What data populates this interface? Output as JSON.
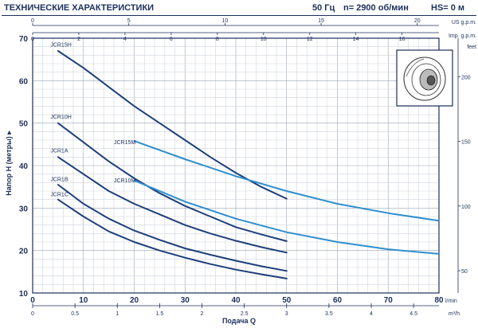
{
  "header": {
    "title": "ТЕХНИЧЕСКИЕ ХАРАКТЕРИСТИКИ",
    "freq": "50 Гц",
    "speed": "n= 2900 об/мин",
    "hs": "HS= 0 м"
  },
  "chart_data": {
    "type": "line",
    "xlabel": "Подача Q",
    "ylabel": "Напор H (метры)",
    "xlim": [
      0,
      80
    ],
    "ylim": [
      10,
      70
    ],
    "grid": true,
    "axes": {
      "lmin": {
        "min": 0,
        "max": 80,
        "ticks": [
          0,
          10,
          20,
          30,
          40,
          50,
          60,
          70,
          80
        ],
        "unit": "l/min"
      },
      "m3h": {
        "min": 0,
        "max": 4.8,
        "ticks": [
          "0",
          "0.5",
          "1",
          "1.5",
          "2",
          "2.5",
          "3",
          "3.5",
          "4",
          "4.5"
        ],
        "unit": "m³/h"
      },
      "usgpm": {
        "min": 0,
        "max": 21.13,
        "ticks": [
          0,
          5,
          10,
          15,
          20
        ],
        "unit": "US g.p.m."
      },
      "impgpm": {
        "min": 0,
        "max": 17.6,
        "ticks": [
          0,
          2,
          4,
          6,
          8,
          10,
          12,
          14,
          16
        ],
        "unit": "Imp. g.p.m."
      },
      "metres": {
        "min": 10,
        "max": 70,
        "ticks": [
          10,
          20,
          30,
          40,
          50,
          60,
          70
        ]
      },
      "feet": {
        "min": 32.8,
        "max": 229.7,
        "ticks": [
          50,
          100,
          150,
          200
        ],
        "unit": "feet"
      }
    },
    "series": [
      {
        "name": "JCR15H",
        "color": "#1e3f7a",
        "label_x": 3.5,
        "label_y": 67.5,
        "points": [
          [
            5,
            67
          ],
          [
            10,
            63
          ],
          [
            15,
            58.5
          ],
          [
            20,
            54
          ],
          [
            25,
            50
          ],
          [
            30,
            46
          ],
          [
            35,
            42
          ],
          [
            40,
            38.3
          ],
          [
            45,
            35
          ],
          [
            50,
            32.2
          ]
        ]
      },
      {
        "name": "JCR15M",
        "color": "#2e8fcf",
        "label_x": 16,
        "label_y": 44.5,
        "points": [
          [
            20,
            45.8
          ],
          [
            30,
            41.5
          ],
          [
            40,
            37.5
          ],
          [
            50,
            34
          ],
          [
            60,
            31
          ],
          [
            70,
            28.8
          ],
          [
            80,
            27
          ]
        ]
      },
      {
        "name": "JCR10H",
        "color": "#1e3f7a",
        "label_x": 3.5,
        "label_y": 50.5,
        "points": [
          [
            5,
            50
          ],
          [
            10,
            45.5
          ],
          [
            15,
            41
          ],
          [
            20,
            37
          ],
          [
            25,
            33.5
          ],
          [
            30,
            30.5
          ],
          [
            35,
            28
          ],
          [
            40,
            25.5
          ],
          [
            45,
            23.8
          ],
          [
            50,
            22.2
          ]
        ]
      },
      {
        "name": "JCR10M",
        "color": "#2e8fcf",
        "label_x": 16,
        "label_y": 35.5,
        "points": [
          [
            20,
            36.5
          ],
          [
            30,
            31.5
          ],
          [
            40,
            27.5
          ],
          [
            50,
            24.3
          ],
          [
            60,
            22
          ],
          [
            70,
            20.3
          ],
          [
            80,
            19.2
          ]
        ]
      },
      {
        "name": "JCR1A",
        "color": "#1e3f7a",
        "label_x": 3.5,
        "label_y": 42.5,
        "points": [
          [
            5,
            42
          ],
          [
            10,
            38
          ],
          [
            15,
            34
          ],
          [
            20,
            31
          ],
          [
            25,
            28.5
          ],
          [
            30,
            26
          ],
          [
            35,
            24
          ],
          [
            40,
            22.3
          ],
          [
            45,
            20.8
          ],
          [
            50,
            19.5
          ]
        ]
      },
      {
        "name": "JCR1B",
        "color": "#1e3f7a",
        "label_x": 3.5,
        "label_y": 35.8,
        "points": [
          [
            5,
            35.5
          ],
          [
            10,
            31
          ],
          [
            15,
            27.5
          ],
          [
            20,
            24.7
          ],
          [
            25,
            22.5
          ],
          [
            30,
            20.5
          ],
          [
            35,
            19
          ],
          [
            40,
            17.6
          ],
          [
            45,
            16.3
          ],
          [
            50,
            15.2
          ]
        ]
      },
      {
        "name": "JCR1C",
        "color": "#1e3f7a",
        "label_x": 3.5,
        "label_y": 32.2,
        "points": [
          [
            5,
            32
          ],
          [
            10,
            28
          ],
          [
            15,
            24.5
          ],
          [
            20,
            22
          ],
          [
            25,
            20
          ],
          [
            30,
            18.3
          ],
          [
            35,
            16.8
          ],
          [
            40,
            15.5
          ],
          [
            45,
            14.4
          ],
          [
            50,
            13.4
          ]
        ]
      }
    ]
  }
}
